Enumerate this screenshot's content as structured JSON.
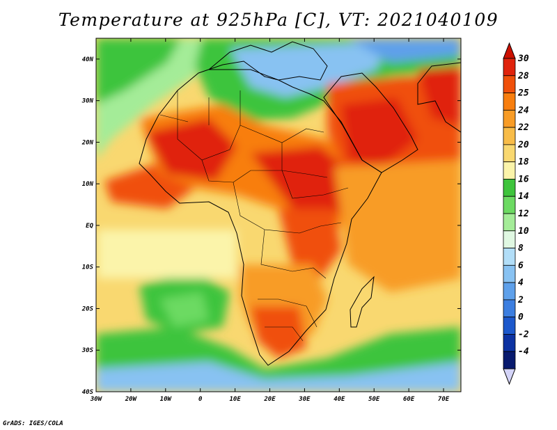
{
  "title": "Temperature at 925hPa [C], VT: 2021040109",
  "credit": "GrADS: IGES/COLA",
  "map": {
    "projection": "lat-lon",
    "lon_range": [
      -30,
      75
    ],
    "lat_range": [
      -40,
      45
    ],
    "x_ticks": [
      {
        "value": -30,
        "label": "30W"
      },
      {
        "value": -20,
        "label": "20W"
      },
      {
        "value": -10,
        "label": "10W"
      },
      {
        "value": 0,
        "label": "0"
      },
      {
        "value": 10,
        "label": "10E"
      },
      {
        "value": 20,
        "label": "20E"
      },
      {
        "value": 30,
        "label": "30E"
      },
      {
        "value": 40,
        "label": "40E"
      },
      {
        "value": 50,
        "label": "50E"
      },
      {
        "value": 60,
        "label": "60E"
      },
      {
        "value": 70,
        "label": "70E"
      }
    ],
    "y_ticks": [
      {
        "value": 40,
        "label": "40N"
      },
      {
        "value": 30,
        "label": "30N"
      },
      {
        "value": 20,
        "label": "20N"
      },
      {
        "value": 10,
        "label": "10N"
      },
      {
        "value": 0,
        "label": "EQ"
      },
      {
        "value": -10,
        "label": "10S"
      },
      {
        "value": -20,
        "label": "20S"
      },
      {
        "value": -30,
        "label": "30S"
      },
      {
        "value": -40,
        "label": "40S"
      }
    ]
  },
  "colorbar": {
    "labels": [
      "30",
      "28",
      "25",
      "24",
      "22",
      "20",
      "18",
      "16",
      "14",
      "12",
      "10",
      "8",
      "6",
      "4",
      "2",
      "0",
      "-2",
      "-4"
    ],
    "colors": [
      "#e0230c",
      "#f0500a",
      "#f87e0e",
      "#f89c26",
      "#f8bc48",
      "#f9d870",
      "#fbf4aa",
      "#3ec43c",
      "#6cda62",
      "#a4ec98",
      "#e0f8e2",
      "#b2def8",
      "#88c2f2",
      "#5ea0ea",
      "#3c7ee0",
      "#1c58cc",
      "#0c32a2",
      "#081a6e"
    ],
    "top_arrow_color": "#cc1000",
    "bottom_arrow_color": "#d4d4f8"
  }
}
